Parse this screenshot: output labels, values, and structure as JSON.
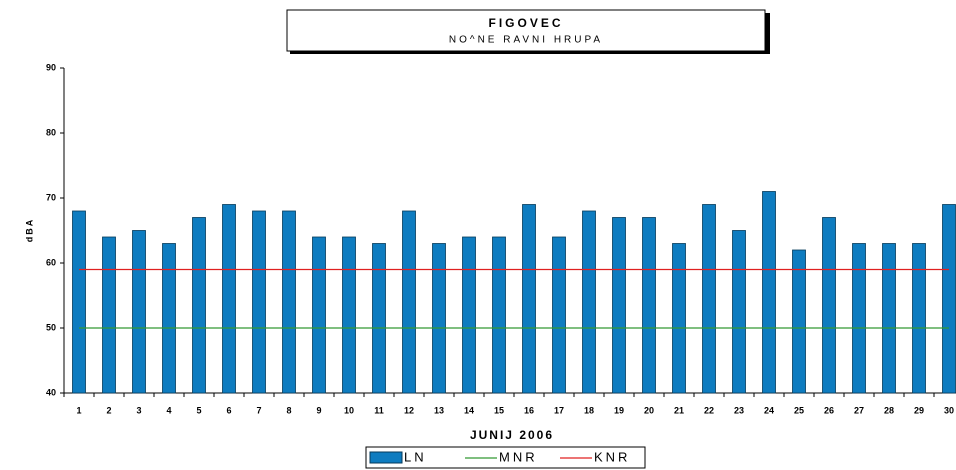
{
  "chart_data": {
    "type": "bar",
    "title": "FIGOVEC",
    "subtitle": "NO^NE RAVNI HRUPA",
    "x_label": "JUNIJ 2006",
    "y_label": "dBA",
    "categories": [
      "1",
      "2",
      "3",
      "4",
      "5",
      "6",
      "7",
      "8",
      "9",
      "10",
      "11",
      "12",
      "13",
      "14",
      "15",
      "16",
      "17",
      "18",
      "19",
      "20",
      "21",
      "22",
      "23",
      "24",
      "25",
      "26",
      "27",
      "28",
      "29",
      "30"
    ],
    "series": [
      {
        "name": "LN",
        "type": "bar",
        "color": "#0e7cc0",
        "values": [
          68,
          64,
          65,
          63,
          67,
          69,
          68,
          68,
          64,
          64,
          63,
          68,
          63,
          64,
          64,
          69,
          64,
          68,
          67,
          67,
          63,
          69,
          65,
          71,
          62,
          67,
          63,
          63,
          63,
          69
        ]
      },
      {
        "name": "MNR",
        "type": "line",
        "color": "#339933",
        "values": [
          50,
          50,
          50,
          50,
          50,
          50,
          50,
          50,
          50,
          50,
          50,
          50,
          50,
          50,
          50,
          50,
          50,
          50,
          50,
          50,
          50,
          50,
          50,
          50,
          50,
          50,
          50,
          50,
          50,
          50
        ]
      },
      {
        "name": "KNR",
        "type": "line",
        "color": "#e02020",
        "values": [
          59,
          59,
          59,
          59,
          59,
          59,
          59,
          59,
          59,
          59,
          59,
          59,
          59,
          59,
          59,
          59,
          59,
          59,
          59,
          59,
          59,
          59,
          59,
          59,
          59,
          59,
          59,
          59,
          59,
          59
        ]
      }
    ],
    "ylim": [
      40,
      90
    ],
    "yticks": [
      40,
      50,
      60,
      70,
      80,
      90
    ],
    "grid": false,
    "legend": "bottom"
  }
}
